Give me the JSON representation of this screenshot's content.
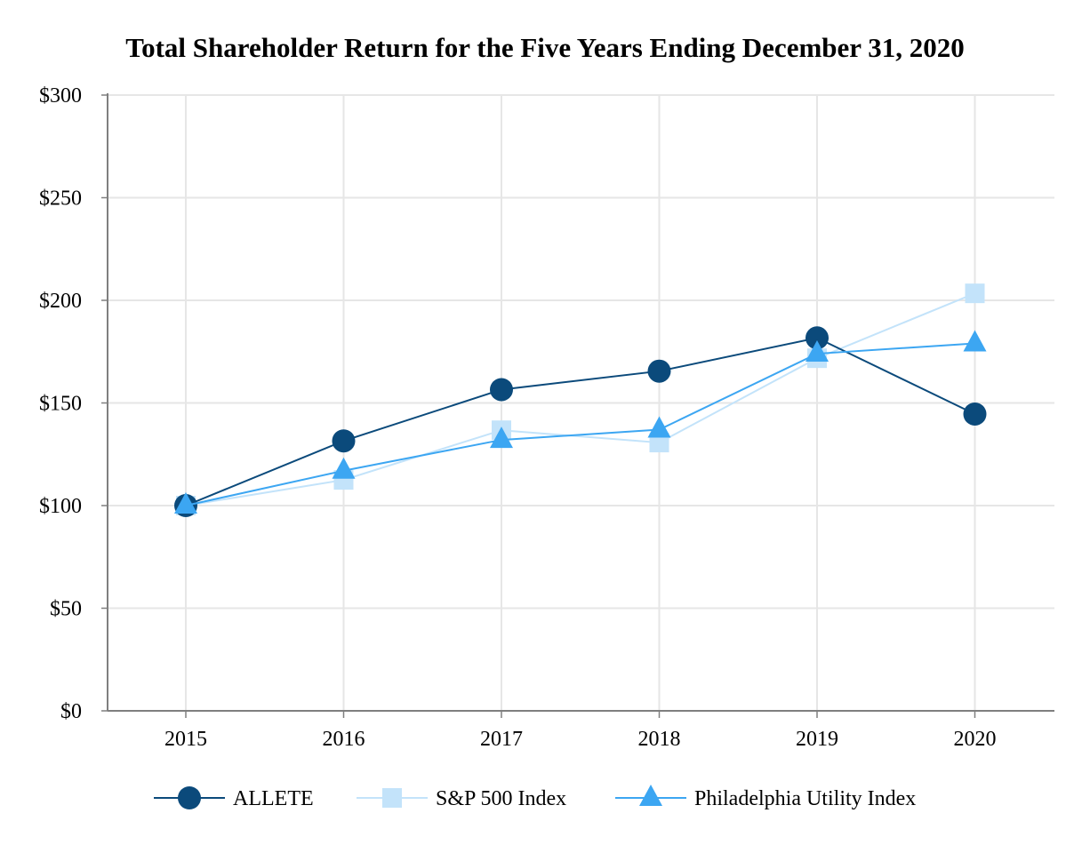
{
  "chart_data": {
    "type": "line",
    "title": "Total Shareholder Return for the Five Years Ending December 31, 2020",
    "xlabel": "",
    "ylabel": "",
    "categories": [
      "2015",
      "2016",
      "2017",
      "2018",
      "2019",
      "2020"
    ],
    "ylim": [
      0,
      300
    ],
    "yticks": [
      0,
      50,
      100,
      150,
      200,
      250,
      300
    ],
    "ytick_labels": [
      "$0",
      "$50",
      "$100",
      "$150",
      "$200",
      "$250",
      "$300"
    ],
    "grid": true,
    "legend_position": "bottom",
    "series": [
      {
        "name": "ALLETE",
        "marker": "circle",
        "color": "#0b4a7b",
        "values": [
          100,
          131.5,
          156.5,
          165.5,
          181.7,
          144.6
        ]
      },
      {
        "name": "S&P 500 Index",
        "marker": "square",
        "color": "#c3e3fa",
        "values": [
          100,
          112.5,
          136.7,
          130.7,
          171.8,
          203.4
        ]
      },
      {
        "name": "Philadelphia Utility Index",
        "marker": "triangle",
        "color": "#3ca6f2",
        "values": [
          100,
          117,
          132,
          137,
          174,
          179
        ]
      }
    ]
  }
}
